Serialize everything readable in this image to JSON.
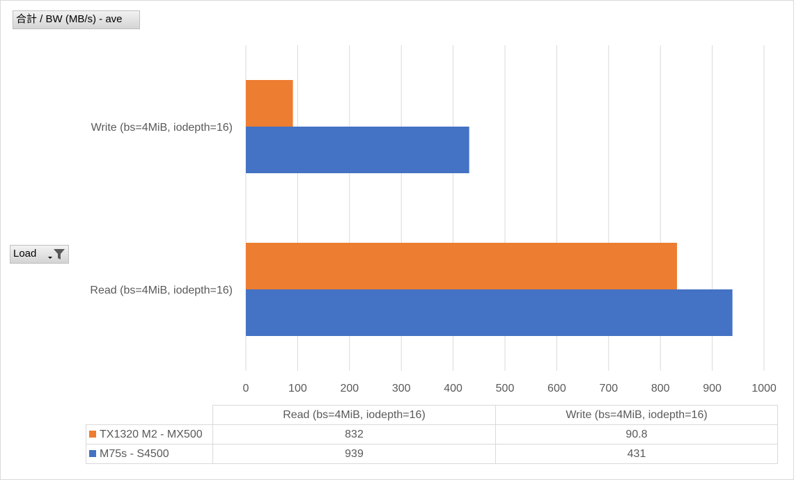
{
  "field_buttons": {
    "value_field": "合計 / BW (MB/s) - ave",
    "row_field": "Load"
  },
  "colors": {
    "series_orange": "#ED7D31",
    "series_blue": "#4472C4",
    "gridline": "#d9d9d9"
  },
  "icons": {
    "dropdown": "chevron-down-icon",
    "filter": "filter-icon"
  },
  "chart_data": {
    "type": "bar",
    "orientation": "horizontal",
    "categories": [
      "Read (bs=4MiB, iodepth=16)",
      "Write (bs=4MiB, iodepth=16)"
    ],
    "series": [
      {
        "name": "TX1320 M2 - MX500",
        "color": "#ED7D31",
        "values": [
          832,
          90.8
        ]
      },
      {
        "name": "M75s - S4500",
        "color": "#4472C4",
        "values": [
          939,
          431
        ]
      }
    ],
    "xlim": [
      0,
      1000
    ],
    "ticks": [
      0,
      100,
      200,
      300,
      400,
      500,
      600,
      700,
      800,
      900,
      1000
    ],
    "grid": true,
    "legend": "data-table"
  },
  "data_table": {
    "columns": [
      "Read (bs=4MiB, iodepth=16)",
      "Write (bs=4MiB, iodepth=16)"
    ],
    "rows": [
      {
        "label": "TX1320 M2 - MX500",
        "cells": [
          "832",
          "90.8"
        ]
      },
      {
        "label": "M75s - S4500",
        "cells": [
          "939",
          "431"
        ]
      }
    ]
  }
}
